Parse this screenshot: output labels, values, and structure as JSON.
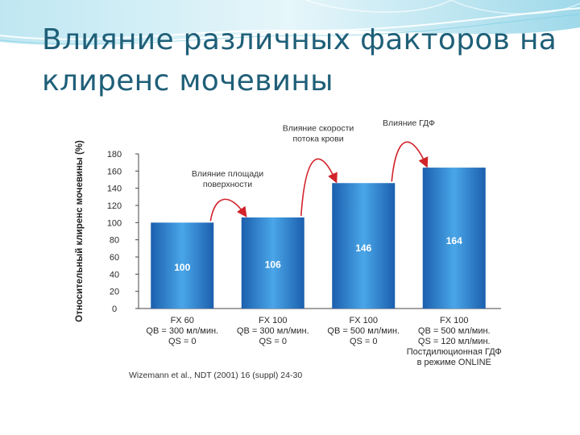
{
  "slide": {
    "title": "Влияние различных факторов на клиренс мочевины"
  },
  "colors": {
    "title": "#1f5f78",
    "bar_dark": "#1b5fae",
    "bar_light": "#4aa6e8",
    "arrow": "#d2232a",
    "header_wave": "#6cc5dd"
  },
  "chart_data": {
    "type": "bar",
    "ylabel": "Относительный клиренс мочевины (%)",
    "ylim": [
      0,
      180
    ],
    "yticks": [
      0,
      20,
      40,
      60,
      80,
      100,
      120,
      140,
      160,
      180
    ],
    "grid": false,
    "categories": [
      [
        "FX 60",
        "QB = 300 мл/мин.",
        "QS = 0"
      ],
      [
        "FX 100",
        "QB = 300 мл/мин.",
        "QS = 0"
      ],
      [
        "FX 100",
        "QB = 500 мл/мин.",
        "QS = 0"
      ],
      [
        "FX 100",
        "QB = 500 мл/мин.",
        "QS = 120 мл/мин.",
        "Постдилюционная ГДФ",
        "в режиме ONLINE"
      ]
    ],
    "values": [
      100,
      106,
      146,
      164
    ],
    "data_labels": [
      "100",
      "106",
      "146",
      "164"
    ],
    "annotations": [
      {
        "lines": [
          "Влияние площади",
          "поверхности"
        ],
        "from": 0,
        "to": 1
      },
      {
        "lines": [
          "Влияние скорости",
          "потока крови"
        ],
        "from": 1,
        "to": 2
      },
      {
        "lines": [
          "Влияние ГДФ"
        ],
        "from": 2,
        "to": 3
      }
    ],
    "source": "Wizemann et al., NDT (2001) 16 (suppl) 24-30"
  }
}
